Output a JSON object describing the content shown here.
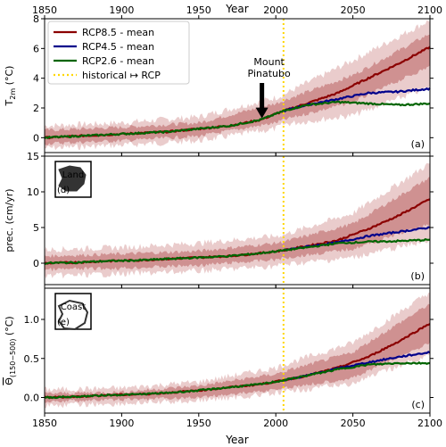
{
  "chart_data": [
    {
      "type": "line",
      "panel_letter": "(a)",
      "ylabel": "T$_{2m}$ (°C)",
      "ylabel_main": "T",
      "ylabel_sub": "2m",
      "ylabel_unit": " (°C)",
      "xlabel": "Year",
      "xlim": [
        1850,
        2100
      ],
      "ylim": [
        -1,
        8
      ],
      "yticks": [
        0,
        2,
        4,
        6,
        8
      ],
      "xticks": [
        1850,
        1900,
        1950,
        2000,
        2050,
        2100
      ],
      "legend": {
        "placement": "top-left",
        "entries": [
          {
            "label": "RCP8.5 - mean",
            "color": "#8b0000",
            "style": "solid"
          },
          {
            "label": "RCP4.5 - mean",
            "color": "#00008b",
            "style": "solid"
          },
          {
            "label": "RCP2.6 - mean",
            "color": "#006400",
            "style": "solid"
          },
          {
            "label": "historical ↦ RCP",
            "color": "#ffd700",
            "style": "dotted"
          }
        ]
      },
      "annotation": {
        "line1": "Mount",
        "line2": "Pinatubo",
        "x": 1991,
        "y_arrow_tip": 1.3
      },
      "vline_x": 2005,
      "series": [
        {
          "name": "RCP8.5 - mean",
          "color": "#8b0000",
          "x": [
            1850,
            1870,
            1890,
            1910,
            1930,
            1950,
            1970,
            1990,
            2005,
            2020,
            2040,
            2060,
            2080,
            2100
          ],
          "y": [
            0.0,
            0.1,
            0.2,
            0.3,
            0.4,
            0.6,
            0.8,
            1.2,
            1.8,
            2.3,
            3.0,
            4.0,
            5.0,
            6.1
          ]
        },
        {
          "name": "RCP4.5 - mean",
          "color": "#00008b",
          "x": [
            2005,
            2020,
            2040,
            2060,
            2080,
            2100
          ],
          "y": [
            1.8,
            2.2,
            2.6,
            3.0,
            3.1,
            3.3
          ]
        },
        {
          "name": "RCP2.6 - mean",
          "color": "#006400",
          "x": [
            1850,
            1870,
            1890,
            1910,
            1930,
            1950,
            1970,
            1990,
            2005,
            2020,
            2040,
            2060,
            2080,
            2100
          ],
          "y": [
            0.0,
            0.1,
            0.2,
            0.3,
            0.4,
            0.6,
            0.8,
            1.2,
            1.8,
            2.2,
            2.4,
            2.3,
            2.2,
            2.3
          ]
        }
      ],
      "band_outer": {
        "x": [
          1850,
          1900,
          1950,
          2000,
          2005,
          2050,
          2100
        ],
        "low": [
          -0.7,
          -0.5,
          -0.2,
          0.6,
          0.9,
          1.5,
          3.4
        ],
        "high": [
          0.8,
          1.0,
          1.4,
          2.7,
          2.9,
          5.2,
          7.9
        ]
      },
      "band_inner": {
        "x": [
          1850,
          1900,
          1950,
          2000,
          2005,
          2050,
          2100
        ],
        "low": [
          -0.4,
          -0.2,
          0.1,
          1.0,
          1.2,
          2.4,
          4.8
        ],
        "high": [
          0.5,
          0.7,
          1.0,
          2.3,
          2.5,
          4.2,
          7.0
        ]
      }
    },
    {
      "type": "line",
      "panel_letter": "(b)",
      "ylabel": "prec. (cm/yr)",
      "xlabel": "Year",
      "xlim": [
        1850,
        2100
      ],
      "ylim": [
        -3,
        15
      ],
      "yticks": [
        0,
        5,
        10,
        15
      ],
      "xticks": [
        1850,
        1900,
        1950,
        2000,
        2050,
        2100
      ],
      "inset": {
        "label": "Land",
        "letter": "(d)"
      },
      "vline_x": 2005,
      "series": [
        {
          "name": "RCP8.5 - mean",
          "color": "#8b0000",
          "x": [
            1850,
            1870,
            1890,
            1910,
            1930,
            1950,
            1970,
            1990,
            2005,
            2020,
            2040,
            2060,
            2080,
            2100
          ],
          "y": [
            0.0,
            0.1,
            0.3,
            0.4,
            0.6,
            0.8,
            1.0,
            1.4,
            1.8,
            2.4,
            3.2,
            4.8,
            6.7,
            9.0
          ]
        },
        {
          "name": "RCP4.5 - mean",
          "color": "#00008b",
          "x": [
            2005,
            2020,
            2040,
            2060,
            2080,
            2100
          ],
          "y": [
            1.8,
            2.3,
            2.9,
            3.8,
            4.4,
            5.0
          ]
        },
        {
          "name": "RCP2.6 - mean",
          "color": "#006400",
          "x": [
            1850,
            1870,
            1890,
            1910,
            1930,
            1950,
            1970,
            1990,
            2005,
            2020,
            2040,
            2060,
            2080,
            2100
          ],
          "y": [
            0.0,
            0.1,
            0.3,
            0.4,
            0.6,
            0.8,
            1.0,
            1.4,
            1.8,
            2.2,
            2.8,
            3.0,
            3.1,
            3.3
          ]
        }
      ],
      "band_outer": {
        "x": [
          1850,
          1900,
          1950,
          2000,
          2005,
          2050,
          2100
        ],
        "low": [
          -1.8,
          -1.5,
          -1.1,
          -0.4,
          -0.2,
          0.8,
          3.2
        ],
        "high": [
          1.9,
          2.2,
          2.8,
          3.8,
          4.0,
          7.0,
          14.0
        ]
      },
      "band_inner": {
        "x": [
          1850,
          1900,
          1950,
          2000,
          2005,
          2050,
          2100
        ],
        "low": [
          -0.9,
          -0.7,
          -0.3,
          0.5,
          0.7,
          2.0,
          5.5
        ],
        "high": [
          1.0,
          1.3,
          1.7,
          2.8,
          3.0,
          5.5,
          12.0
        ]
      }
    },
    {
      "type": "line",
      "panel_letter": "(c)",
      "ylabel_main": "Θ",
      "ylabel_sub": "(150−500)",
      "ylabel_unit": " (°C)",
      "xlabel": "Year",
      "xlim": [
        1850,
        2100
      ],
      "ylim": [
        -0.2,
        1.4
      ],
      "yticks": [
        0.0,
        0.5,
        1.0
      ],
      "ytick_labels": [
        "0.0",
        "0.5",
        "1.0"
      ],
      "xticks": [
        1850,
        1900,
        1950,
        2000,
        2050,
        2100
      ],
      "inset": {
        "label": "Coast",
        "letter": "(e)"
      },
      "vline_x": 2005,
      "series": [
        {
          "name": "RCP8.5 - mean",
          "color": "#8b0000",
          "x": [
            1850,
            1870,
            1890,
            1910,
            1930,
            1950,
            1970,
            1990,
            2005,
            2020,
            2040,
            2060,
            2080,
            2100
          ],
          "y": [
            0.0,
            0.01,
            0.03,
            0.04,
            0.06,
            0.09,
            0.13,
            0.17,
            0.22,
            0.28,
            0.38,
            0.52,
            0.72,
            0.95
          ]
        },
        {
          "name": "RCP4.5 - mean",
          "color": "#00008b",
          "x": [
            2005,
            2020,
            2040,
            2060,
            2080,
            2100
          ],
          "y": [
            0.22,
            0.28,
            0.37,
            0.45,
            0.52,
            0.58
          ]
        },
        {
          "name": "RCP2.6 - mean",
          "color": "#006400",
          "x": [
            1850,
            1870,
            1890,
            1910,
            1930,
            1950,
            1970,
            1990,
            2005,
            2020,
            2040,
            2060,
            2080,
            2100
          ],
          "y": [
            0.0,
            0.01,
            0.03,
            0.04,
            0.06,
            0.09,
            0.13,
            0.17,
            0.22,
            0.28,
            0.36,
            0.42,
            0.44,
            0.44
          ]
        }
      ],
      "band_outer": {
        "x": [
          1850,
          1900,
          1950,
          2000,
          2005,
          2050,
          2100
        ],
        "low": [
          -0.1,
          -0.08,
          -0.04,
          0.05,
          0.07,
          0.18,
          0.55
        ],
        "high": [
          0.1,
          0.12,
          0.2,
          0.38,
          0.42,
          0.7,
          1.35
        ]
      },
      "band_inner": {
        "x": [
          1850,
          1900,
          1950,
          2000,
          2005,
          2050,
          2100
        ],
        "low": [
          -0.05,
          -0.03,
          0.0,
          0.1,
          0.12,
          0.25,
          0.7
        ],
        "high": [
          0.05,
          0.07,
          0.15,
          0.3,
          0.33,
          0.58,
          1.2
        ]
      }
    }
  ],
  "shared_xaxis": {
    "top_label": "Year",
    "bottom_label": "Year"
  }
}
